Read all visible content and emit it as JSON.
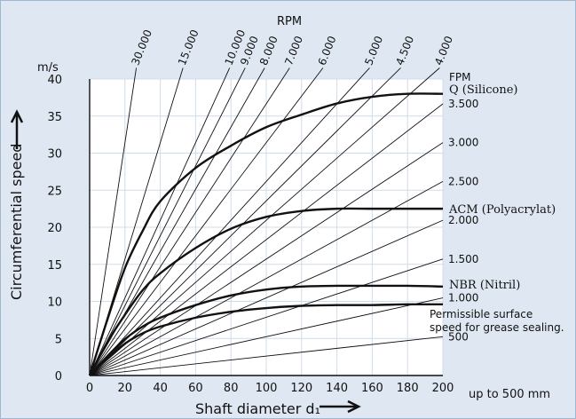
{
  "chart_data": {
    "type": "line",
    "xlabel": "Shaft diameter d₁",
    "ylabel": "Circumferential speed",
    "x_unit_note": "up to 500 mm",
    "y_unit": "m/s",
    "top_axis_label": "RPM",
    "right_axis_label": "FPM",
    "xlim": [
      0,
      200
    ],
    "ylim": [
      0,
      40
    ],
    "x_ticks": [
      0,
      20,
      40,
      60,
      80,
      100,
      120,
      140,
      160,
      180,
      200
    ],
    "y_ticks": [
      0,
      5,
      10,
      15,
      20,
      25,
      30,
      35,
      40
    ],
    "grid": true,
    "rpm_lines": [
      {
        "label": "30.000",
        "rpm": 30000
      },
      {
        "label": "15.000",
        "rpm": 15000
      },
      {
        "label": "10.000",
        "rpm": 10000
      },
      {
        "label": "9.000",
        "rpm": 9000
      },
      {
        "label": "8.000",
        "rpm": 8000
      },
      {
        "label": "7.000",
        "rpm": 7000
      },
      {
        "label": "6.000",
        "rpm": 6000
      },
      {
        "label": "5.000",
        "rpm": 5000
      },
      {
        "label": "4.500",
        "rpm": 4500
      },
      {
        "label": "4.000",
        "rpm": 4000
      },
      {
        "label": "3.500",
        "rpm": 3500
      },
      {
        "label": "3.000",
        "rpm": 3000
      },
      {
        "label": "2.500",
        "rpm": 2500
      },
      {
        "label": "2.000",
        "rpm": 2000
      },
      {
        "label": "1.500",
        "rpm": 1500
      },
      {
        "label": "1.000",
        "rpm": 1000
      },
      {
        "label": "500",
        "rpm": 500
      }
    ],
    "series": [
      {
        "name": "Q (Silicone)",
        "x": [
          0,
          10,
          20,
          30,
          40,
          60,
          80,
          100,
          120,
          140,
          160,
          180,
          200
        ],
        "y": [
          0,
          7.5,
          14.5,
          19.5,
          23.5,
          28,
          31,
          33.5,
          35.2,
          36.7,
          37.6,
          38,
          38
        ]
      },
      {
        "name": "ACM (Polyacrylat)",
        "x": [
          0,
          10,
          20,
          30,
          40,
          60,
          80,
          100,
          120,
          140,
          160,
          180,
          200
        ],
        "y": [
          0,
          4.5,
          8.2,
          11.5,
          13.8,
          17.2,
          19.8,
          21.4,
          22.2,
          22.5,
          22.5,
          22.5,
          22.5
        ]
      },
      {
        "name": "NBR (Nitril)",
        "x": [
          0,
          10,
          20,
          30,
          40,
          60,
          80,
          100,
          120,
          140,
          160,
          180,
          200
        ],
        "y": [
          0,
          2.6,
          4.9,
          6.6,
          7.8,
          9.5,
          10.8,
          11.6,
          12.0,
          12.1,
          12.1,
          12.1,
          12.0
        ]
      },
      {
        "name": "Permissible surface speed for grease sealing.",
        "x": [
          0,
          10,
          20,
          30,
          40,
          60,
          80,
          100,
          120,
          140,
          160,
          180,
          200
        ],
        "y": [
          0,
          2.3,
          4.3,
          5.7,
          6.6,
          7.8,
          8.6,
          9.1,
          9.4,
          9.5,
          9.5,
          9.6,
          9.6
        ]
      }
    ],
    "annotations": {
      "silicone": "Q (Silicone)",
      "acm": "ACM (Polyacrylat)",
      "nbr": "NBR (Nitril)",
      "grease_line1": "Permissible surface",
      "grease_line2": "speed for grease sealing."
    },
    "colors": {
      "background": "#dfe8f2",
      "plot_bg": "#ffffff",
      "grid": "#ffffff",
      "line": "#111111"
    }
  }
}
